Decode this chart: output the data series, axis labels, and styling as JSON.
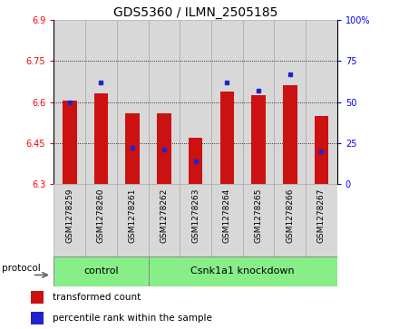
{
  "title": "GDS5360 / ILMN_2505185",
  "samples": [
    "GSM1278259",
    "GSM1278260",
    "GSM1278261",
    "GSM1278262",
    "GSM1278263",
    "GSM1278264",
    "GSM1278265",
    "GSM1278266",
    "GSM1278267"
  ],
  "red_values": [
    6.605,
    6.63,
    6.56,
    6.558,
    6.468,
    6.638,
    6.625,
    6.66,
    6.55
  ],
  "blue_values_pct": [
    50,
    62,
    22,
    21,
    14,
    62,
    57,
    67,
    20
  ],
  "y_min": 6.3,
  "y_max": 6.9,
  "y_ticks": [
    6.3,
    6.45,
    6.6,
    6.75,
    6.9
  ],
  "y_ticks_right": [
    0,
    25,
    50,
    75,
    100
  ],
  "protocol_labels": [
    "control",
    "Csnk1a1 knockdown"
  ],
  "n_control": 3,
  "n_knockdown": 6,
  "bar_color": "#cc1111",
  "dot_color": "#2222cc",
  "protocol_bg": "#88ee88",
  "sample_bg": "#d8d8d8",
  "title_fontsize": 10,
  "tick_fontsize": 7,
  "label_fontsize": 8
}
